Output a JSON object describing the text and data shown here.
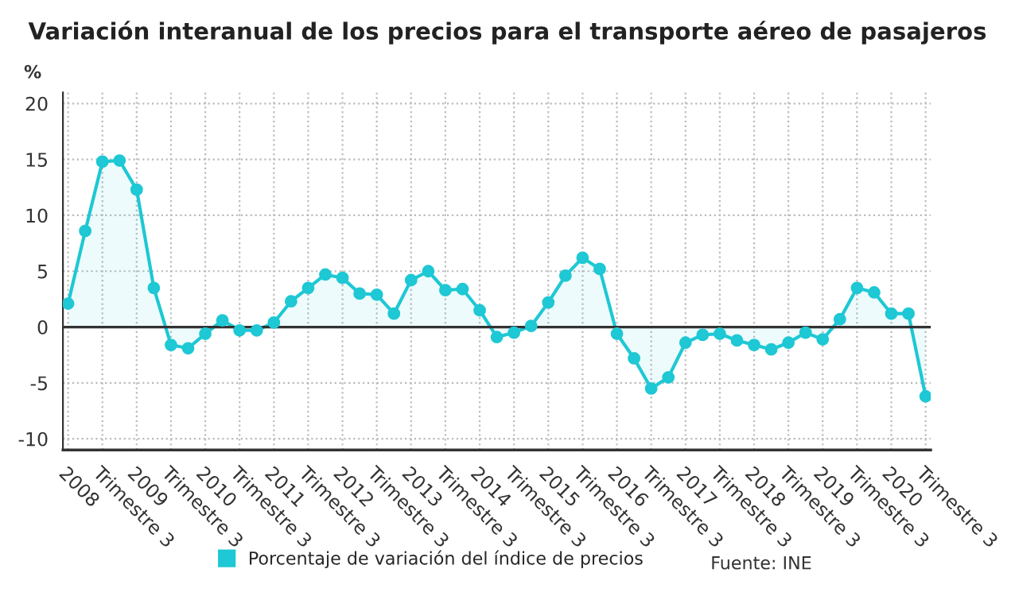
{
  "chart_data": {
    "type": "area",
    "title": "Variación interanual de los precios para el transporte aéreo de pasajeros",
    "ylabel": "%",
    "categories": [
      "2008",
      null,
      "Trimestre 3",
      null,
      "2009",
      null,
      "Trimestre 3",
      null,
      "2010",
      null,
      "Trimestre 3",
      null,
      "2011",
      null,
      "Trimestre 3",
      null,
      "2012",
      null,
      "Trimestre 3",
      null,
      "2013",
      null,
      "Trimestre 3",
      null,
      "2014",
      null,
      "Trimestre 3",
      null,
      "2015",
      null,
      "Trimestre 3",
      null,
      "2016",
      null,
      "Trimestre 3",
      null,
      "2017",
      null,
      "Trimestre 3",
      null,
      "2018",
      null,
      "Trimestre 3",
      null,
      "2019",
      null,
      "Trimestre 3",
      null,
      "2020",
      null,
      "Trimestre 3"
    ],
    "series": [
      {
        "name": "Porcentaje de variación del índice de precios",
        "color": "#1ec8d4",
        "values": [
          2.1,
          8.6,
          14.8,
          14.9,
          12.3,
          3.5,
          -1.6,
          -1.9,
          -0.6,
          0.6,
          -0.3,
          -0.3,
          0.4,
          2.3,
          3.5,
          4.7,
          4.4,
          3.0,
          2.9,
          1.2,
          4.2,
          5.0,
          3.3,
          3.4,
          1.5,
          -0.9,
          -0.5,
          0.1,
          2.2,
          4.6,
          6.2,
          5.2,
          -0.6,
          -2.8,
          -5.5,
          -4.5,
          -1.4,
          -0.7,
          -0.6,
          -1.2,
          -1.6,
          -2.0,
          -1.4,
          -0.5,
          -1.1,
          0.7,
          3.5,
          3.1,
          1.2,
          1.2,
          -6.2
        ]
      }
    ],
    "ylim": [
      -11,
      21
    ],
    "yticks": [
      -10,
      -5,
      0,
      5,
      10,
      15,
      20
    ],
    "ref_lines": [
      {
        "axis": "y",
        "value": 0,
        "color": "#333333"
      }
    ],
    "annotations": [
      "Fuente: INE"
    ],
    "grid": true,
    "legend": "bottom",
    "marker": "circle",
    "line_style": "solid"
  }
}
